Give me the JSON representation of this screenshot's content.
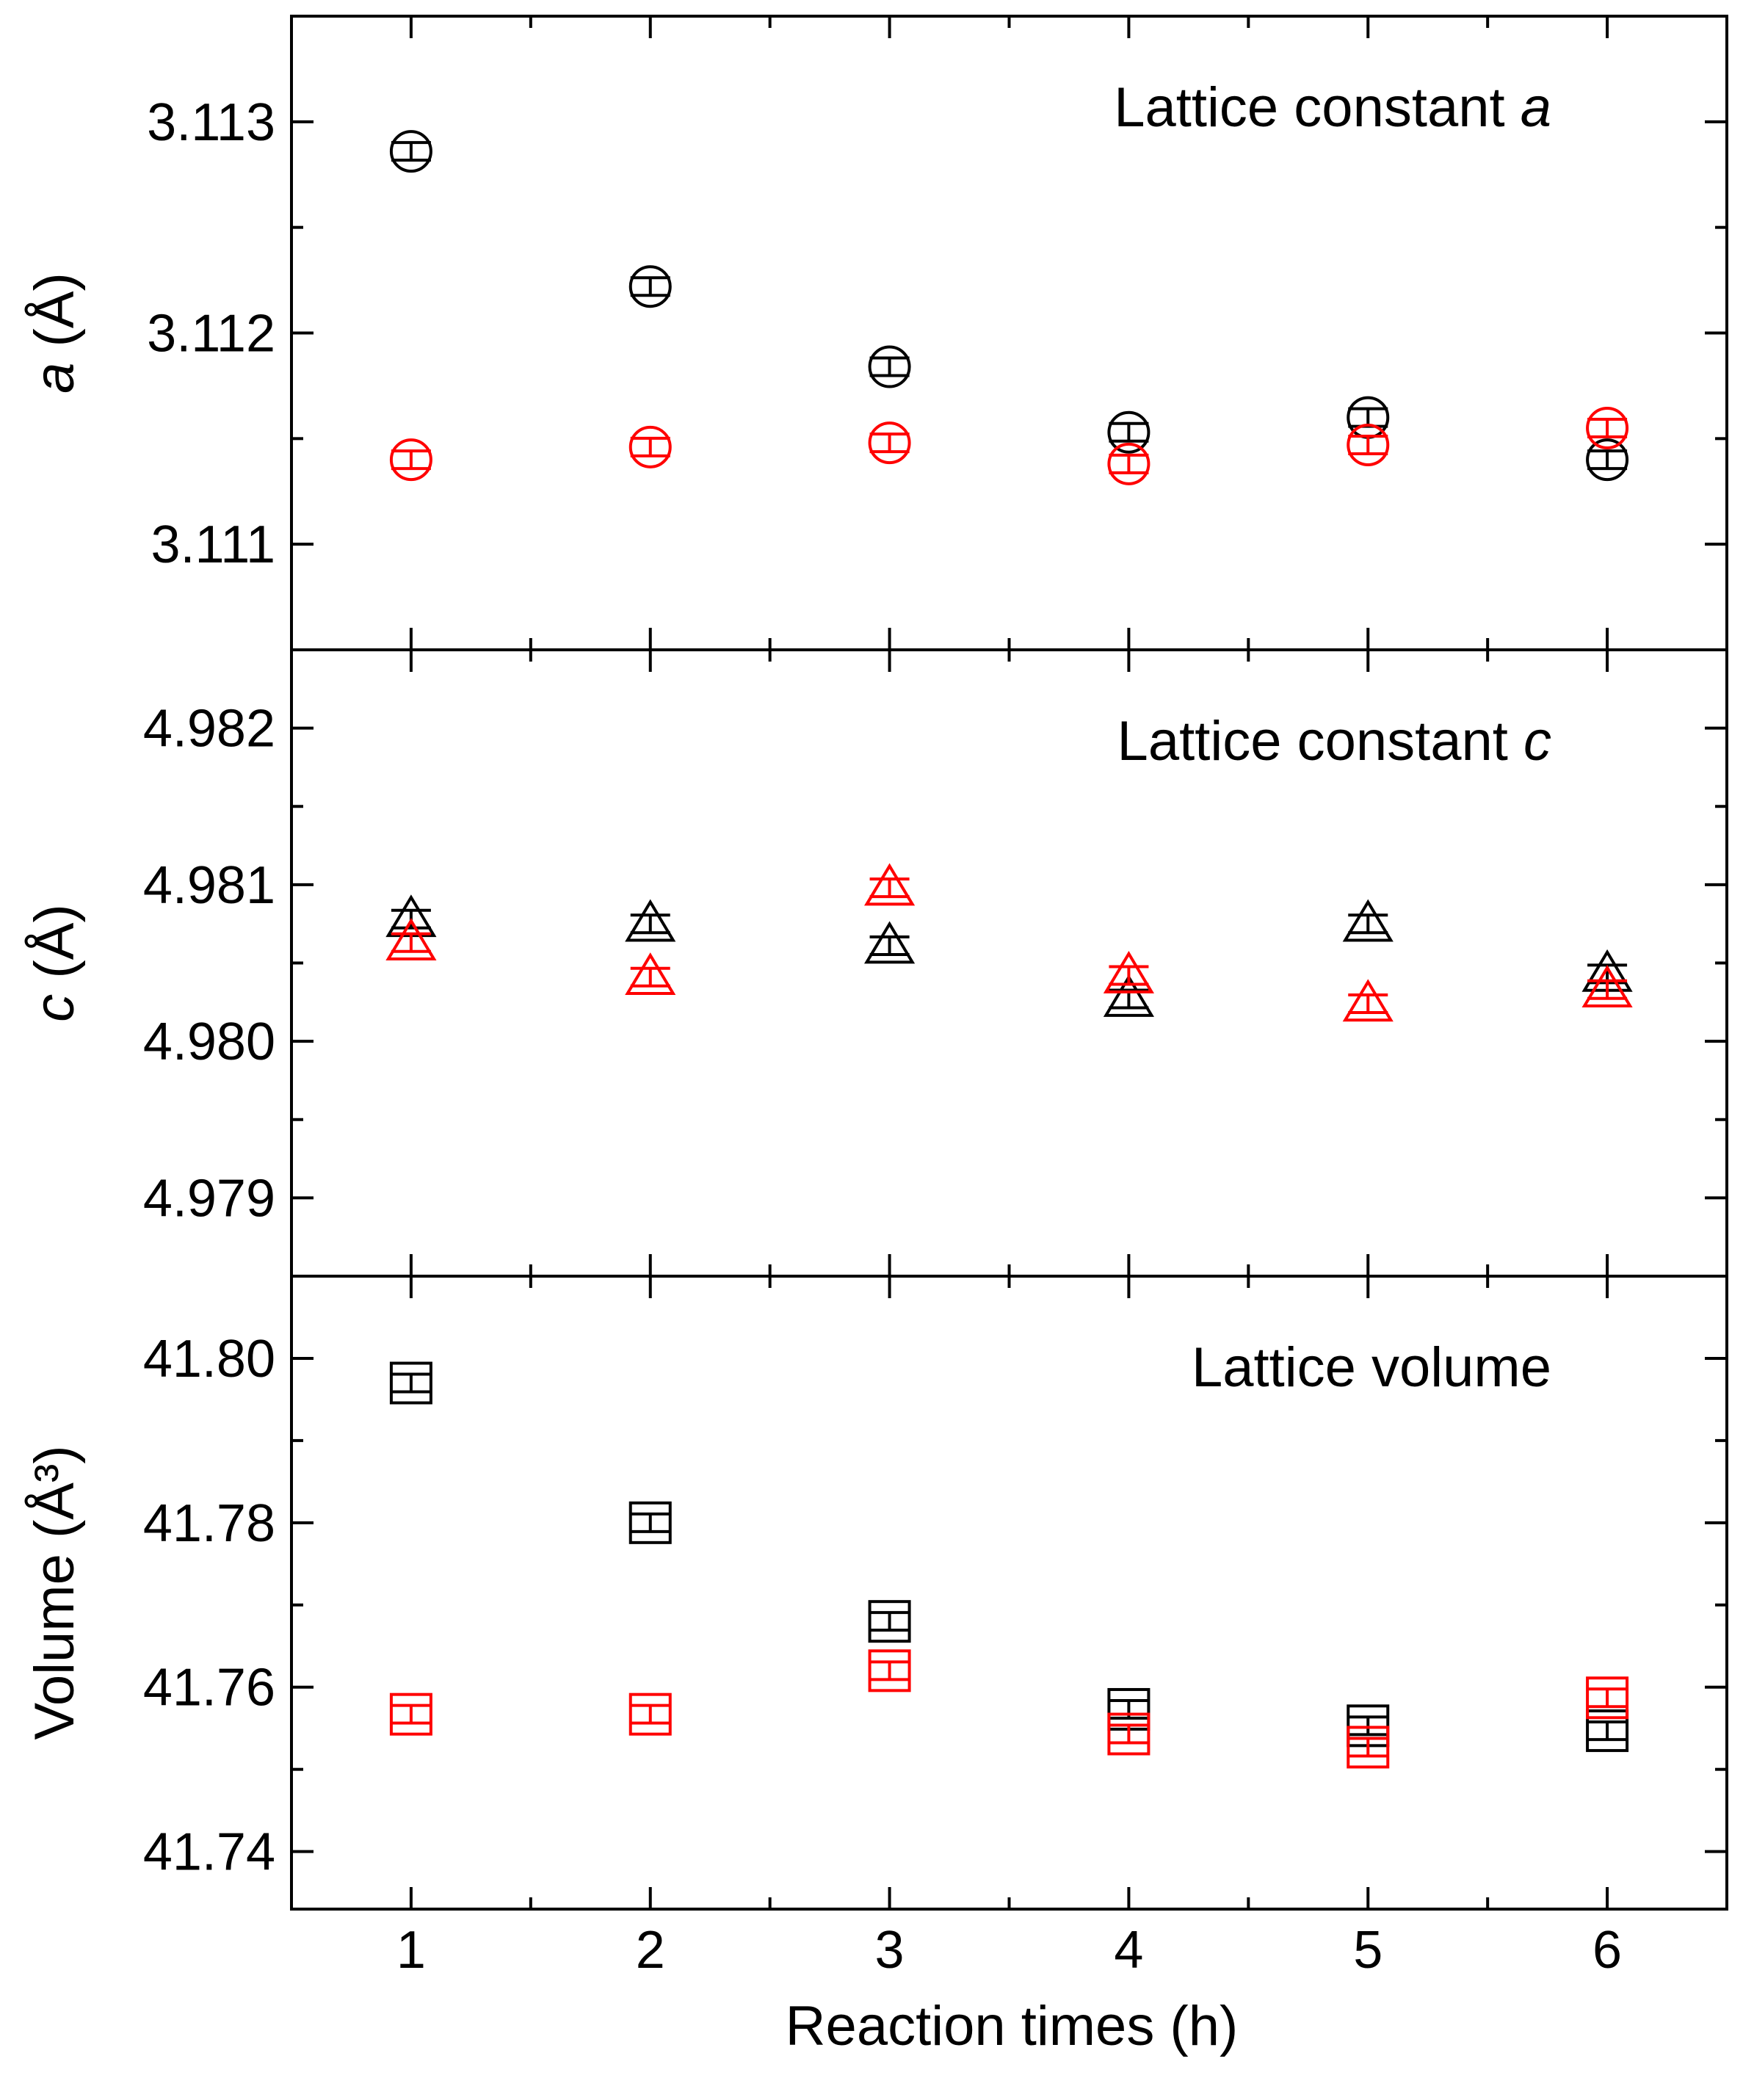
{
  "chart_data": {
    "type": "scatter",
    "xlabel": "Reaction times (h)",
    "x": [
      1,
      2,
      3,
      4,
      5,
      6
    ],
    "xlim": [
      0.5,
      6.5
    ],
    "x_ticks": [
      "1",
      "2",
      "3",
      "4",
      "5",
      "6"
    ],
    "colors": {
      "black": "#000000",
      "red": "#ff0000"
    },
    "panels": [
      {
        "title": "Lattice constant",
        "title_symbol": "a",
        "ylabel_symbol": "a",
        "ylabel_unit": " (Å)",
        "marker": "circle",
        "ylim": [
          3.1105,
          3.1135
        ],
        "y_ticks": [
          3.111,
          3.112,
          3.113
        ],
        "y_tick_labels": [
          "3.111",
          "3.112",
          "3.113"
        ],
        "series": [
          {
            "color": "#000000",
            "values": [
              3.11286,
              3.11222,
              3.11184,
              3.11153,
              3.1116,
              3.1114
            ]
          },
          {
            "color": "#ff0000",
            "values": [
              3.1114,
              3.11146,
              3.11148,
              3.11138,
              3.11147,
              3.11155
            ]
          }
        ]
      },
      {
        "title": "Lattice constant",
        "title_symbol": "c",
        "ylabel_symbol": "c",
        "ylabel_unit": " (Å)",
        "marker": "triangle",
        "ylim": [
          4.9785,
          4.9825
        ],
        "y_ticks": [
          4.979,
          4.98,
          4.981,
          4.982
        ],
        "y_tick_labels": [
          "4.979",
          "4.980",
          "4.981",
          "4.982"
        ],
        "series": [
          {
            "color": "#000000",
            "values": [
              4.98078,
              4.98075,
              4.98061,
              4.98027,
              4.98075,
              4.98043
            ]
          },
          {
            "color": "#ff0000",
            "values": [
              4.98063,
              4.98041,
              4.98098,
              4.98042,
              4.98024,
              4.98033
            ]
          }
        ]
      },
      {
        "title": "Lattice volume",
        "title_symbol": "",
        "ylabel_symbol": "",
        "ylabel_unit": "Volume (Å³)",
        "marker": "square",
        "ylim": [
          41.733,
          41.81
        ],
        "y_ticks": [
          41.74,
          41.76,
          41.78,
          41.8
        ],
        "y_tick_labels": [
          "41.74",
          "41.76",
          "41.78",
          "41.80"
        ],
        "series": [
          {
            "color": "#000000",
            "values": [
              41.797,
              41.78,
              41.768,
              41.7573,
              41.7553,
              41.7547
            ]
          },
          {
            "color": "#ff0000",
            "values": [
              41.7567,
              41.7567,
              41.762,
              41.7543,
              41.7527,
              41.7587
            ]
          }
        ]
      }
    ]
  }
}
